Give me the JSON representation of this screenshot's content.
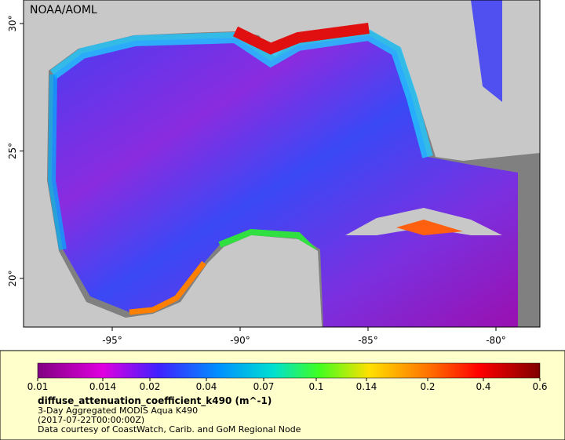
{
  "map": {
    "credit": "NOAA/AOML",
    "lon_ticks": [
      {
        "value": -95,
        "label": "-95°"
      },
      {
        "value": -90,
        "label": "-90°"
      },
      {
        "value": -85,
        "label": "-85°"
      },
      {
        "value": -80,
        "label": "-80°"
      }
    ],
    "lat_ticks": [
      {
        "value": 30,
        "label": "30°"
      },
      {
        "value": 25,
        "label": "25°"
      },
      {
        "value": 20,
        "label": "20°"
      }
    ]
  },
  "legend": {
    "ticks": [
      0.01,
      0.014,
      0.02,
      0.04,
      0.07,
      0.1,
      0.14,
      0.2,
      0.4,
      0.6
    ],
    "variable": "diffuse_attenuation_coefficient_k490 (m^-1)",
    "product": "3-Day Aggregated MODIS Aqua K490",
    "time": "(2017-07-22T00:00:00Z)",
    "source": "Data courtesy of CoastWatch, Carib. and GoM Regional Node"
  }
}
